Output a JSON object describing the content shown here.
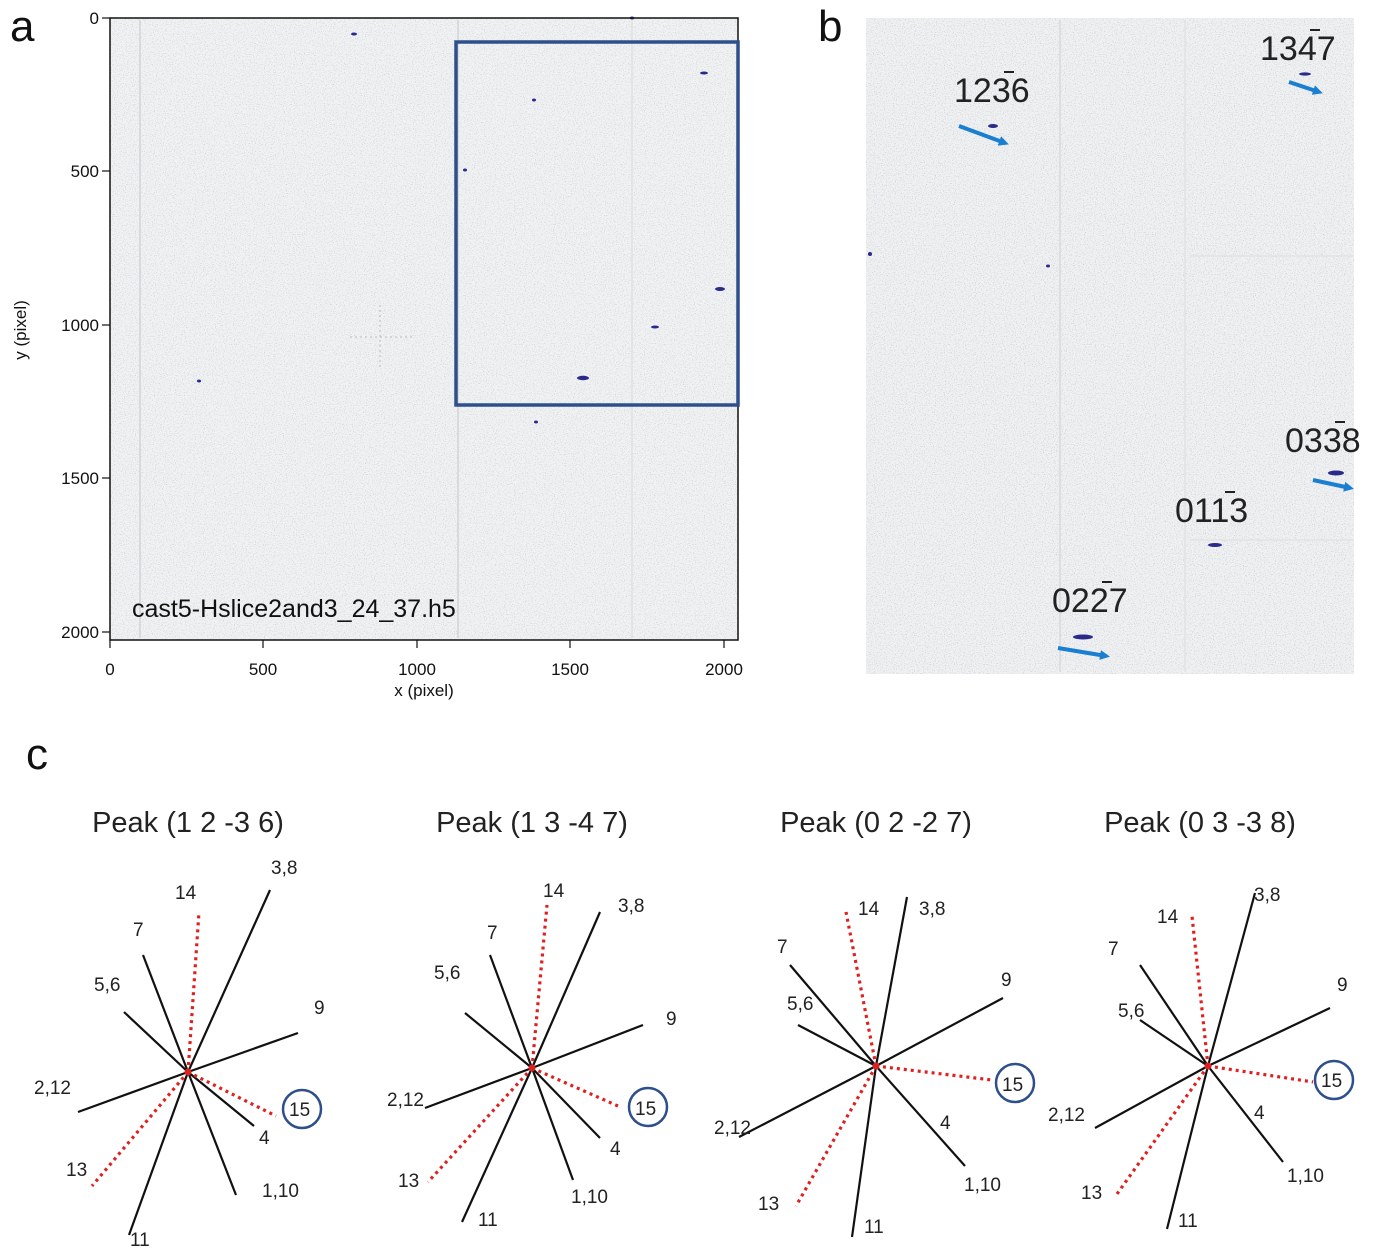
{
  "panel_a": {
    "letter": "a",
    "x_ticks": [
      "0",
      "500",
      "1000",
      "1500",
      "2000"
    ],
    "y_ticks": [
      "0",
      "500",
      "1000",
      "1500",
      "2000"
    ],
    "xlabel": "x  (pixel)",
    "ylabel": "y  (pixel)",
    "filename": "cast5-Hslice2and3_24_37.h5"
  },
  "panel_b": {
    "letter": "b",
    "labels": [
      {
        "digits": [
          "1",
          "2",
          "3",
          "6"
        ],
        "bar_index": 2
      },
      {
        "digits": [
          "1",
          "3",
          "4",
          "7"
        ],
        "bar_index": 2
      },
      {
        "digits": [
          "0",
          "3",
          "3",
          "8"
        ],
        "bar_index": 2
      },
      {
        "digits": [
          "0",
          "1",
          "1",
          "3"
        ],
        "bar_index": 2
      },
      {
        "digits": [
          "0",
          "2",
          "2",
          "7"
        ],
        "bar_index": 2
      }
    ]
  },
  "panel_c": {
    "letter": "c",
    "peaks": [
      {
        "title": "Peak (1 2 -3 6)",
        "labels": [
          "14",
          "3,8",
          "7",
          "5,6",
          "9",
          "2,12",
          "15",
          "4",
          "13",
          "1,10",
          "11"
        ]
      },
      {
        "title": "Peak (1 3 -4 7)",
        "labels": [
          "14",
          "3,8",
          "7",
          "5,6",
          "9",
          "2,12",
          "15",
          "4",
          "13",
          "1,10",
          "11"
        ]
      },
      {
        "title": "Peak (0 2 -2 7)",
        "labels": [
          "14",
          "3,8",
          "7",
          "5,6",
          "9",
          "15",
          "2,12",
          "4",
          "13",
          "1,10",
          "11"
        ]
      },
      {
        "title": "Peak (0 3 -3 8)",
        "labels": [
          "14",
          "3,8",
          "7",
          "5,6",
          "9",
          "15",
          "2,12",
          "4",
          "13",
          "1,10",
          "11"
        ]
      }
    ],
    "colors": {
      "solid": "#111111",
      "dotted": "#e02020",
      "circle": "#2e4f8a"
    }
  },
  "colors": {
    "box": "#2e4f8a",
    "arrow": "#1a7fd0",
    "spot": "#2a2a8a"
  }
}
